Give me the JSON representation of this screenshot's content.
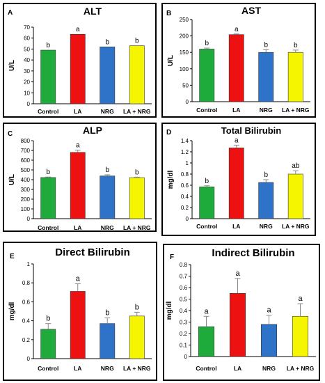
{
  "colors": {
    "control": "#1faa3c",
    "la": "#ee1111",
    "nrg": "#2f73c8",
    "la_nrg": "#f5f500"
  },
  "chart_data": [
    {
      "type": "bar",
      "panel_label": "A",
      "title": "ALT",
      "ylabel": "U/L",
      "ylim": [
        0,
        70
      ],
      "yticks": [
        0,
        10,
        20,
        30,
        40,
        50,
        60,
        70
      ],
      "categories": [
        "Control",
        "LA",
        "NRG",
        "LA + NRG"
      ],
      "values": [
        49,
        63.5,
        52,
        53
      ],
      "errors": [
        0,
        0,
        0,
        0
      ],
      "letters": [
        "b",
        "a",
        "b",
        "b"
      ],
      "grid": false,
      "legend": "none"
    },
    {
      "type": "bar",
      "panel_label": "B",
      "title": "AST",
      "ylabel": "U/L",
      "ylim": [
        0,
        250
      ],
      "yticks": [
        0,
        50,
        100,
        150,
        200,
        250
      ],
      "categories": [
        "Control",
        "LA",
        "NRG",
        "LA + NRG"
      ],
      "values": [
        160,
        204,
        150,
        150
      ],
      "errors": [
        3,
        2,
        8,
        7
      ],
      "letters": [
        "b",
        "a",
        "b",
        "b"
      ],
      "grid": false,
      "legend": "none"
    },
    {
      "type": "bar",
      "panel_label": "C",
      "title": "ALP",
      "ylabel": "U/L",
      "ylim": [
        0,
        800
      ],
      "yticks": [
        0,
        100,
        200,
        300,
        400,
        500,
        600,
        700,
        800
      ],
      "categories": [
        "Control",
        "LA",
        "NRG",
        "LA + NRG"
      ],
      "values": [
        422,
        680,
        438,
        421
      ],
      "errors": [
        5,
        22,
        12,
        5
      ],
      "letters": [
        "b",
        "a",
        "b",
        "b"
      ],
      "grid": false,
      "legend": "none"
    },
    {
      "type": "bar",
      "panel_label": "D",
      "title": "Total Bilirubin",
      "ylabel": "mg/dl",
      "ylim": [
        0,
        1.4
      ],
      "yticks": [
        0,
        0.2,
        0.4,
        0.6,
        0.8,
        1,
        1.2,
        1.4
      ],
      "categories": [
        "Control",
        "LA",
        "NRG",
        "LA + NRG"
      ],
      "values": [
        0.57,
        1.27,
        0.65,
        0.8
      ],
      "errors": [
        0.02,
        0.05,
        0.05,
        0.06
      ],
      "letters": [
        "b",
        "a",
        "b",
        "ab"
      ],
      "grid": false,
      "legend": "none"
    },
    {
      "type": "bar",
      "panel_label": "E",
      "title": "Direct Bilirubin",
      "ylabel": "mg/dl",
      "ylim": [
        0,
        1
      ],
      "yticks": [
        0,
        0.2,
        0.4,
        0.6,
        0.8,
        1
      ],
      "categories": [
        "Control",
        "LA",
        "NRG",
        "LA + NRG"
      ],
      "values": [
        0.31,
        0.71,
        0.37,
        0.45
      ],
      "errors": [
        0.06,
        0.08,
        0.06,
        0.04
      ],
      "letters": [
        "b",
        "a",
        "b",
        "b"
      ],
      "grid": false,
      "legend": "none"
    },
    {
      "type": "bar",
      "panel_label": "F",
      "title": "Indirect Bilirubin",
      "ylabel": "mg/dl",
      "ylim": [
        0,
        0.8
      ],
      "yticks": [
        0,
        0.1,
        0.2,
        0.3,
        0.4,
        0.5,
        0.6,
        0.7,
        0.8
      ],
      "categories": [
        "Control",
        "LA",
        "NRG",
        "LA + NRG"
      ],
      "values": [
        0.26,
        0.55,
        0.28,
        0.35
      ],
      "errors": [
        0.09,
        0.13,
        0.08,
        0.11
      ],
      "letters": [
        "a",
        "a",
        "a",
        "a"
      ],
      "grid": false,
      "legend": "none"
    }
  ]
}
